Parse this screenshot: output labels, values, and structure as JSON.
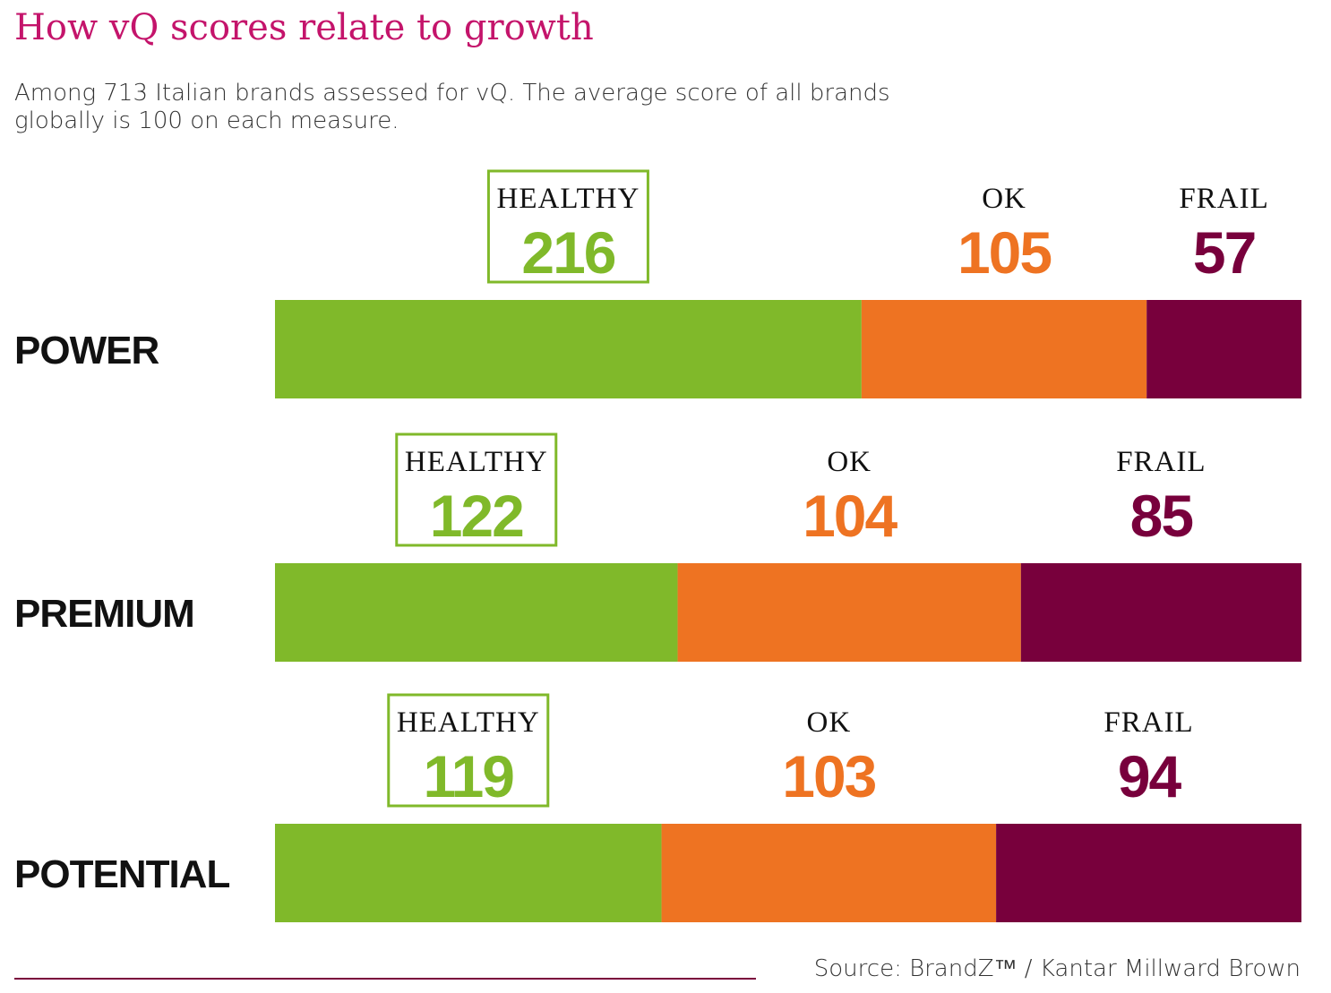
{
  "title": "How vQ scores relate to growth",
  "subtitle": "Among 713 Italian brands assessed for vQ. The average score of all brands globally is 100 on each measure.",
  "source": "Source: BrandZ™ / Kantar Millward Brown",
  "colors": {
    "title": "#c4146b",
    "healthy": "#80b92a",
    "ok": "#ee7322",
    "frail": "#78003c",
    "text": "#111111"
  },
  "chart_data": {
    "type": "bar",
    "stacked": true,
    "orientation": "horizontal",
    "categories": [
      "POWER",
      "PREMIUM",
      "POTENTIAL"
    ],
    "series": [
      {
        "name": "HEALTHY",
        "values": [
          216,
          122,
          119
        ],
        "highlighted": true
      },
      {
        "name": "OK",
        "values": [
          105,
          104,
          103
        ]
      },
      {
        "name": "FRAIL",
        "values": [
          57,
          85,
          94
        ]
      }
    ]
  }
}
